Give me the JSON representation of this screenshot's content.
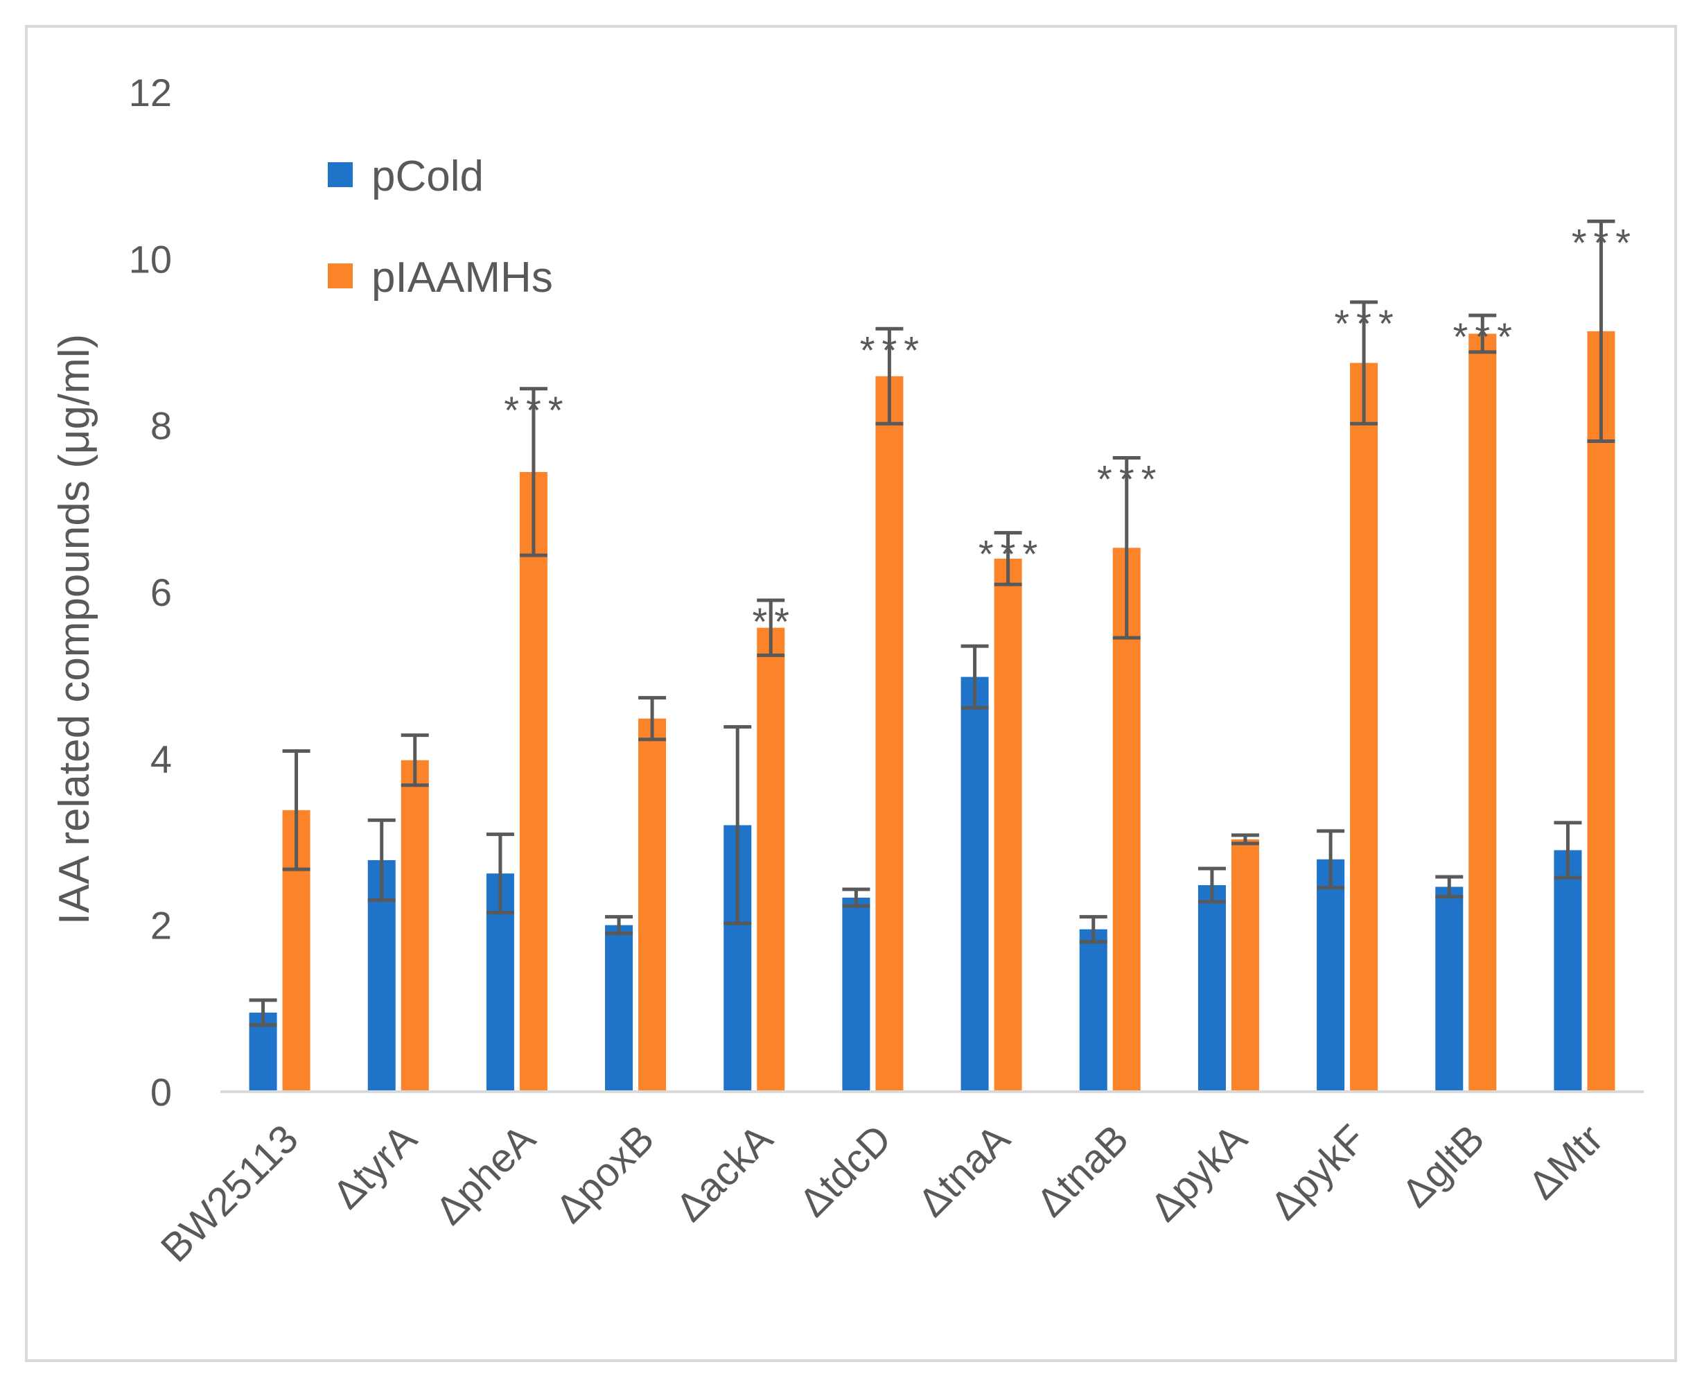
{
  "chart_data": {
    "type": "bar",
    "title": "",
    "xlabel": "",
    "ylabel": "IAA related compounds (μg/ml)",
    "ylim": [
      0,
      12
    ],
    "yticks": [
      0,
      2,
      4,
      6,
      8,
      10,
      12
    ],
    "grid": false,
    "legend_position": "top-left",
    "categories": [
      "BW25113",
      "ΔtyrA",
      "ΔpheA",
      "ΔpoxB",
      "ΔackA",
      "ΔtdcD",
      "ΔtnaA",
      "ΔtnaB",
      "ΔpykA",
      "ΔpykF",
      "ΔgltB",
      "ΔMtr"
    ],
    "series": [
      {
        "name": "pCold",
        "color": "#1f73c9",
        "values": [
          0.95,
          2.78,
          2.62,
          2.0,
          3.2,
          2.33,
          4.98,
          1.95,
          2.48,
          2.79,
          2.46,
          2.9
        ],
        "errors": [
          0.15,
          0.48,
          0.47,
          0.1,
          1.18,
          0.1,
          0.37,
          0.15,
          0.2,
          0.34,
          0.12,
          0.33
        ]
      },
      {
        "name": "pIAAMHs",
        "color": "#fb8329",
        "values": [
          3.38,
          3.98,
          7.44,
          4.48,
          5.57,
          8.59,
          6.4,
          6.53,
          3.03,
          8.75,
          9.1,
          9.13
        ],
        "errors": [
          0.71,
          0.3,
          1.0,
          0.25,
          0.33,
          0.57,
          0.31,
          1.08,
          0.05,
          0.73,
          0.22,
          1.32
        ]
      }
    ],
    "significance": [
      "",
      "",
      "***",
      "",
      "**",
      "***",
      "***",
      "***",
      "",
      "***",
      "***",
      "***"
    ]
  }
}
